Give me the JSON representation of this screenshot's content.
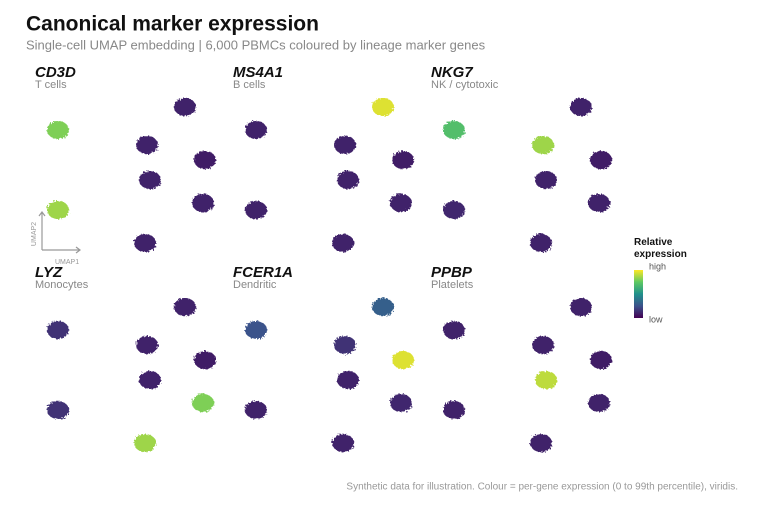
{
  "title": "Canonical marker expression",
  "subtitle": "Single-cell UMAP embedding | 6,000 PBMCs coloured by lineage marker genes",
  "axis_labels": {
    "x": "UMAP1",
    "y": "UMAP2"
  },
  "colorbar": {
    "title": "Relative expression",
    "high": "high",
    "low": "low",
    "colormap": "viridis"
  },
  "footnote": "Synthetic data for illustration. Colour = per-gene expression (0 to 99th percentile), viridis.",
  "chart_data": [
    {
      "type": "scatter",
      "title": "CD3D",
      "subtitle": "T cells",
      "x": [
        2.3,
        15,
        11.2,
        17,
        11.5,
        16.8,
        2.3,
        11
      ],
      "y": [
        13,
        15.3,
        11.5,
        10,
        8,
        5.7,
        5,
        1.7
      ],
      "values": [
        0.8,
        0.1,
        0.1,
        0.08,
        0.1,
        0.1,
        0.85,
        0.1
      ],
      "xlim": [
        0,
        19
      ],
      "ylim": [
        0,
        19.5
      ],
      "clim": [
        0,
        1
      ]
    },
    {
      "type": "scatter",
      "title": "MS4A1",
      "subtitle": "B cells",
      "x": [
        2.3,
        15,
        11.2,
        17,
        11.5,
        16.8,
        2.3,
        11
      ],
      "y": [
        13,
        15.3,
        11.5,
        10,
        8,
        5.7,
        5,
        1.7
      ],
      "values": [
        0.1,
        0.95,
        0.1,
        0.08,
        0.1,
        0.1,
        0.1,
        0.1
      ],
      "xlim": [
        0,
        19
      ],
      "ylim": [
        0,
        19.5
      ],
      "clim": [
        0,
        1
      ]
    },
    {
      "type": "scatter",
      "title": "NKG7",
      "subtitle": "NK / cytotoxic",
      "x": [
        2.3,
        15,
        11.2,
        17,
        11.5,
        16.8,
        2.3,
        11
      ],
      "y": [
        13,
        15.3,
        11.5,
        10,
        8,
        5.7,
        5,
        1.7
      ],
      "values": [
        0.7,
        0.1,
        0.85,
        0.08,
        0.1,
        0.1,
        0.12,
        0.1
      ],
      "xlim": [
        0,
        19
      ],
      "ylim": [
        0,
        19.5
      ],
      "clim": [
        0,
        1
      ]
    },
    {
      "type": "scatter",
      "title": "LYZ",
      "subtitle": "Monocytes",
      "x": [
        2.3,
        15,
        11.2,
        17,
        11.5,
        16.8,
        2.3,
        11
      ],
      "y": [
        13,
        15.3,
        11.5,
        10,
        8,
        5.7,
        5,
        1.7
      ],
      "values": [
        0.15,
        0.1,
        0.1,
        0.08,
        0.1,
        0.8,
        0.15,
        0.85
      ],
      "xlim": [
        0,
        19
      ],
      "ylim": [
        0,
        19.5
      ],
      "clim": [
        0,
        1
      ]
    },
    {
      "type": "scatter",
      "title": "FCER1A",
      "subtitle": "Dendritic",
      "x": [
        2.3,
        15,
        11.2,
        17,
        11.5,
        16.8,
        2.3,
        11
      ],
      "y": [
        13,
        15.3,
        11.5,
        10,
        8,
        5.7,
        5,
        1.7
      ],
      "values": [
        0.25,
        0.3,
        0.15,
        0.95,
        0.1,
        0.12,
        0.1,
        0.1
      ],
      "xlim": [
        0,
        19
      ],
      "ylim": [
        0,
        19.5
      ],
      "clim": [
        0,
        1
      ]
    },
    {
      "type": "scatter",
      "title": "PPBP",
      "subtitle": "Platelets",
      "x": [
        2.3,
        15,
        11.2,
        17,
        11.5,
        16.8,
        2.3,
        11
      ],
      "y": [
        13,
        15.3,
        11.5,
        10,
        8,
        5.7,
        5,
        1.7
      ],
      "values": [
        0.1,
        0.1,
        0.1,
        0.08,
        0.9,
        0.1,
        0.1,
        0.1
      ],
      "xlim": [
        0,
        19
      ],
      "ylim": [
        0,
        19.5
      ],
      "clim": [
        0,
        1
      ]
    }
  ]
}
